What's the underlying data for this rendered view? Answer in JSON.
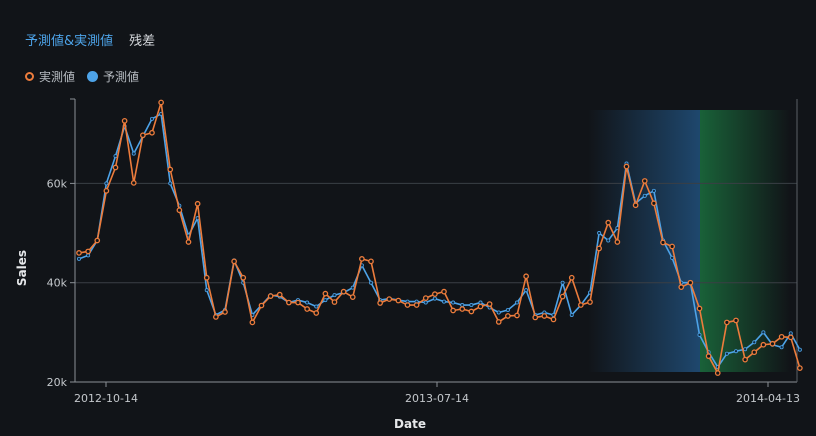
{
  "tabs": {
    "predicted_actual": "予測値&実測値",
    "residual": "残差"
  },
  "legend": {
    "actual": "実測値",
    "predicted": "予測値"
  },
  "colors": {
    "actual": "#ec7c3c",
    "predicted": "#4da3e8",
    "band_blue": "#1f4a72",
    "band_green": "#1a6a3c",
    "grid": "#3a3f45"
  },
  "chart_data": {
    "type": "line",
    "xlabel": "Date",
    "ylabel": "Sales",
    "x_tick_labels": [
      "2012-10-14",
      "2013-07-14",
      "2014-04-13"
    ],
    "y_tick_labels": [
      "20k",
      "40k",
      "60k"
    ],
    "y_ticks": [
      20000,
      40000,
      60000
    ],
    "ylim": [
      20000,
      77000
    ],
    "grid": true,
    "series": [
      {
        "name": "実測値",
        "values": [
          46000,
          46300,
          48500,
          58500,
          63200,
          72600,
          60100,
          69700,
          70200,
          76300,
          62800,
          54600,
          48200,
          55900,
          41000,
          33100,
          34100,
          44300,
          41000,
          32000,
          35400,
          37300,
          37600,
          36000,
          36000,
          34700,
          33900,
          37800,
          36100,
          38200,
          37100,
          44800,
          44300,
          35900,
          36700,
          36400,
          35500,
          35500,
          36900,
          37700,
          38200,
          34400,
          34700,
          34200,
          35200,
          35700,
          32100,
          33300,
          33400,
          41300,
          33000,
          33300,
          32600,
          37200,
          41000,
          35500,
          36100,
          46900,
          52100,
          48200,
          63400,
          55600,
          60500,
          56000,
          48100,
          47300,
          39100,
          40000,
          34800,
          25200,
          21800,
          32000,
          32400,
          24500,
          26000,
          27500,
          27700,
          29100,
          29000,
          22800
        ]
      },
      {
        "name": "予測値",
        "values": [
          44800,
          45500,
          48500,
          60000,
          65500,
          71500,
          66000,
          69500,
          73000,
          74000,
          60000,
          55500,
          49500,
          53000,
          38500,
          33500,
          34500,
          44500,
          40000,
          33500,
          35500,
          37500,
          37200,
          36000,
          36500,
          36000,
          35200,
          36500,
          37500,
          38000,
          39000,
          43500,
          40000,
          36500,
          36800,
          36500,
          36200,
          36200,
          36000,
          36800,
          36200,
          36000,
          35500,
          35500,
          36000,
          35000,
          34000,
          34500,
          36000,
          38500,
          33500,
          34000,
          33500,
          40000,
          33500,
          35500,
          38000,
          50000,
          48500,
          51000,
          64000,
          56000,
          57500,
          58500,
          48500,
          45000,
          40000,
          40000,
          29500,
          26000,
          23000,
          25700,
          26200,
          26600,
          28000,
          30000,
          27500,
          27000,
          29800,
          26500
        ]
      }
    ]
  }
}
